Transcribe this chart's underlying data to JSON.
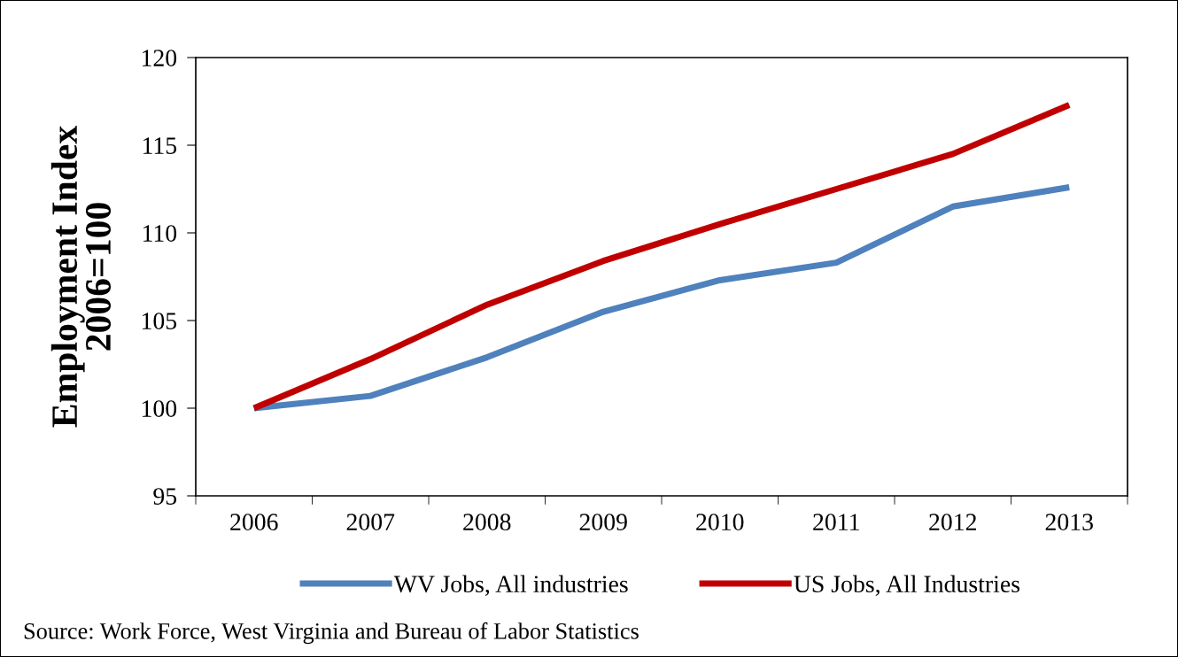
{
  "chart_data": {
    "type": "line",
    "ylabel": "Employment Index\n2006=100",
    "categories": [
      "2006",
      "2007",
      "2008",
      "2009",
      "2010",
      "2011",
      "2012",
      "2013"
    ],
    "series": [
      {
        "name": "WV Jobs, All industries",
        "color": "#4f81bd",
        "values": [
          100,
          100.7,
          102.9,
          105.5,
          107.3,
          108.3,
          111.5,
          112.6
        ]
      },
      {
        "name": "US Jobs, All Industries",
        "color": "#c00000",
        "values": [
          100,
          102.8,
          105.9,
          108.4,
          110.5,
          112.5,
          114.5,
          117.3
        ]
      }
    ],
    "ylim": [
      95,
      120
    ],
    "yticks": [
      95,
      100,
      105,
      110,
      115,
      120
    ],
    "grid": false,
    "legend": "bottom",
    "marker": "none",
    "line_style": "solid",
    "annotations": [
      "Source: Work Force, West Virginia and Bureau of Labor Statistics"
    ]
  }
}
